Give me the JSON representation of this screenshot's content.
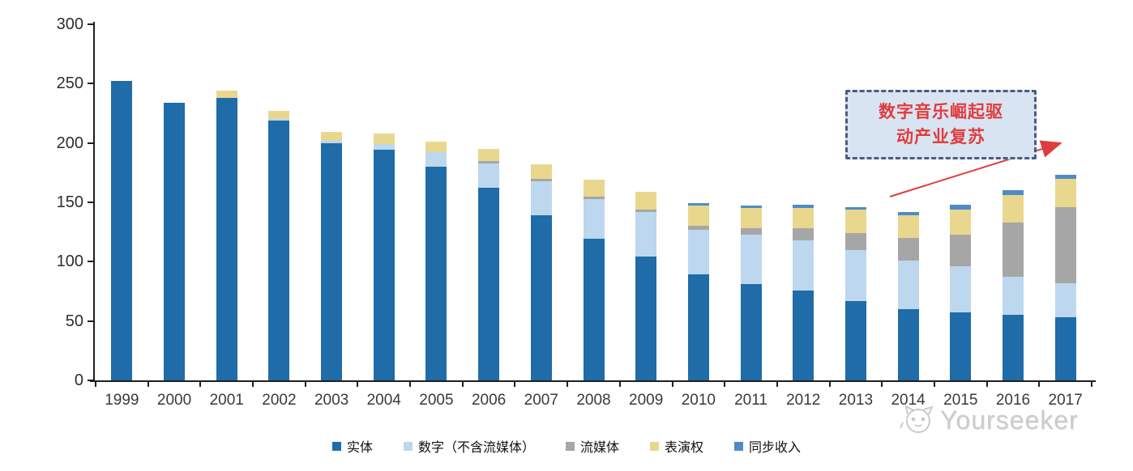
{
  "chart_data": {
    "type": "bar",
    "stacked": true,
    "categories": [
      "1999",
      "2000",
      "2001",
      "2002",
      "2003",
      "2004",
      "2005",
      "2006",
      "2007",
      "2008",
      "2009",
      "2010",
      "2011",
      "2012",
      "2013",
      "2014",
      "2015",
      "2016",
      "2017"
    ],
    "series": [
      {
        "name": "实体",
        "color": "#1F6CA8",
        "values": [
          252,
          234,
          238,
          219,
          200,
          194,
          180,
          162,
          139,
          119,
          104,
          89,
          81,
          76,
          67,
          60,
          57,
          55,
          53
        ]
      },
      {
        "name": "数字（不含流媒体）",
        "color": "#BDD7EE",
        "values": [
          0,
          0,
          0,
          1,
          2,
          5,
          12,
          21,
          29,
          34,
          38,
          38,
          42,
          42,
          43,
          41,
          39,
          32,
          29
        ]
      },
      {
        "name": "流媒体",
        "color": "#A6A6A6",
        "values": [
          0,
          0,
          0,
          0,
          0,
          0,
          0,
          2,
          2,
          2,
          2,
          3,
          5,
          10,
          14,
          19,
          27,
          46,
          64
        ]
      },
      {
        "name": "表演权",
        "color": "#E9D78E",
        "values": [
          0,
          0,
          6,
          7,
          7,
          9,
          9,
          10,
          12,
          14,
          15,
          17,
          17,
          17,
          20,
          19,
          21,
          23,
          24
        ]
      },
      {
        "name": "同步收入",
        "color": "#4E8BC8",
        "values": [
          0,
          0,
          0,
          0,
          0,
          0,
          0,
          0,
          0,
          0,
          0,
          2,
          2,
          3,
          2,
          3,
          4,
          4,
          3
        ]
      }
    ],
    "totals": [
      252,
      234,
      244,
      227,
      209,
      208,
      201,
      195,
      182,
      169,
      159,
      149,
      147,
      148,
      146,
      142,
      148,
      160,
      173
    ],
    "ylim": [
      0,
      300
    ],
    "yticks": [
      0,
      50,
      100,
      150,
      200,
      250,
      300
    ],
    "grid": false,
    "legend_position": "bottom"
  },
  "annotation": {
    "line1": "数字音乐崛起驱",
    "line2": "动产业复苏",
    "text_color": "#E03C3E",
    "box_fill": "#D9E4F2",
    "box_border": "#4A5D80",
    "arrow_color": "#E03C3E"
  },
  "watermark": {
    "text": "Yourseeker",
    "logo": "cat-face-icon",
    "color": "#CBCBCB"
  }
}
